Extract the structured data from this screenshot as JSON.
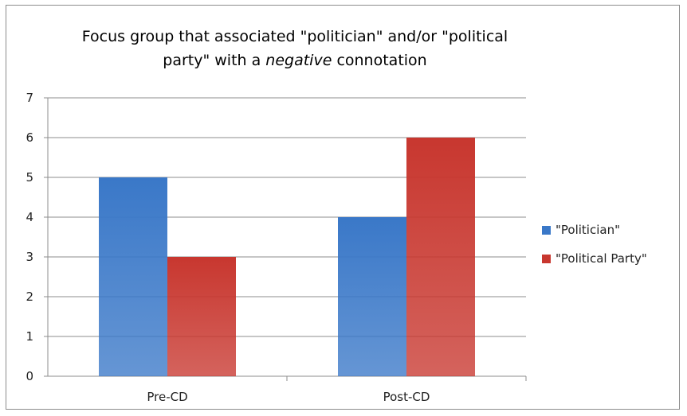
{
  "chart_data": {
    "type": "bar",
    "title_line1": "Focus group that associated \"politician\" and/or \"political",
    "title_line2_before": "party\" with a ",
    "title_line2_emph": "negative",
    "title_line2_after": " connotation",
    "xlabel": "",
    "ylabel": "",
    "categories": [
      "Pre-CD",
      "Post-CD"
    ],
    "series": [
      {
        "name": "\"Politician\"",
        "values": [
          5,
          4
        ],
        "color": "#3a78c8"
      },
      {
        "name": "\"Political Party\"",
        "values": [
          3,
          6
        ],
        "color": "#c8372f"
      }
    ],
    "ylim": [
      0,
      7
    ],
    "yticks": [
      "0",
      "1",
      "2",
      "3",
      "4",
      "5",
      "6",
      "7"
    ],
    "grid": true,
    "legend_position": "right"
  }
}
